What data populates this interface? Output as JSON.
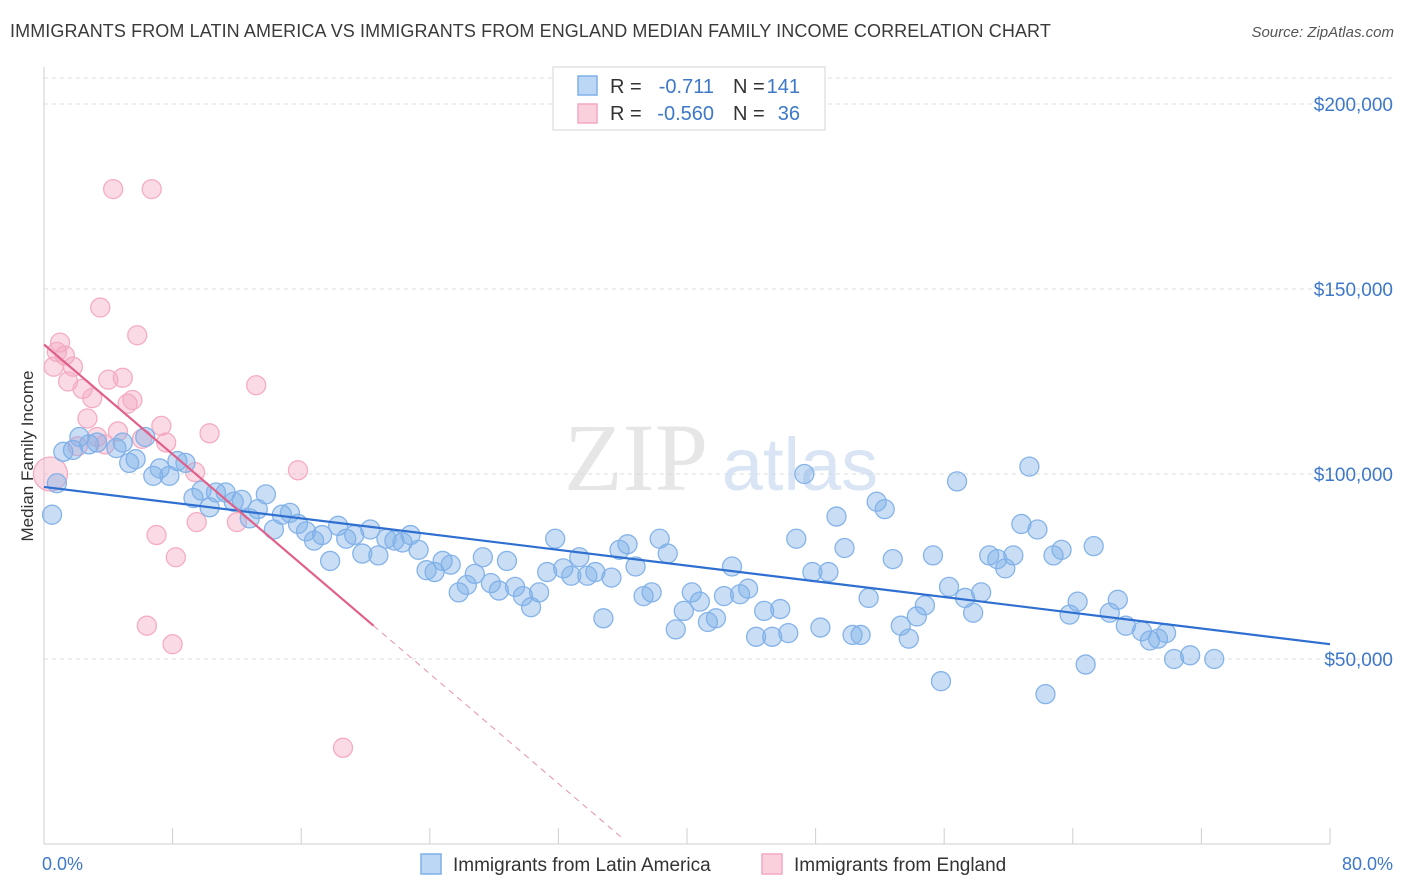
{
  "header": {
    "title": "IMMIGRANTS FROM LATIN AMERICA VS IMMIGRANTS FROM ENGLAND MEDIAN FAMILY INCOME CORRELATION CHART",
    "source": "Source: ZipAtlas.com"
  },
  "watermark": {
    "zip": "ZIP",
    "atlas": "atlas"
  },
  "legend": {
    "r_label": "R =",
    "n_label": "N =",
    "rows": [
      {
        "r": "-0.711",
        "n": "141"
      },
      {
        "r": "-0.560",
        "n": "36"
      }
    ]
  },
  "chart_data": {
    "type": "scatter",
    "title": "IMMIGRANTS FROM LATIN AMERICA VS IMMIGRANTS FROM ENGLAND MEDIAN FAMILY INCOME CORRELATION CHART",
    "xlabel": "",
    "ylabel": "Median Family Income",
    "xlim": [
      0,
      80
    ],
    "ylim": [
      0,
      210000
    ],
    "x_tick_labels": [
      "0.0%",
      "80.0%"
    ],
    "y_ticks": [
      50000,
      100000,
      150000,
      200000
    ],
    "y_tick_labels": [
      "$50,000",
      "$100,000",
      "$150,000",
      "$200,000"
    ],
    "grid": true,
    "legend_position": "top-center",
    "colors": {
      "latin": "#7fb0e8",
      "latin_line": "#2f6fd0",
      "england": "#f4a9c0",
      "england_line": "#e0608a"
    },
    "series": [
      {
        "name": "Immigrants from Latin America",
        "trend": {
          "x0": 0,
          "y0": 96500,
          "x1": 80,
          "y1": 54000
        },
        "points": [
          [
            0.5,
            89000
          ],
          [
            0.8,
            97500
          ],
          [
            1.2,
            106000
          ],
          [
            1.8,
            106500
          ],
          [
            2.2,
            110000
          ],
          [
            2.8,
            108000
          ],
          [
            3.3,
            108500
          ],
          [
            4.5,
            107000
          ],
          [
            4.9,
            108500
          ],
          [
            5.3,
            103000
          ],
          [
            5.7,
            104000
          ],
          [
            6.3,
            110000
          ],
          [
            6.8,
            99500
          ],
          [
            7.2,
            101500
          ],
          [
            7.8,
            99500
          ],
          [
            8.3,
            103500
          ],
          [
            8.8,
            103000
          ],
          [
            9.3,
            93500
          ],
          [
            9.8,
            95500
          ],
          [
            10.3,
            91000
          ],
          [
            10.7,
            95000
          ],
          [
            11.3,
            95000
          ],
          [
            11.8,
            92500
          ],
          [
            12.3,
            93000
          ],
          [
            12.8,
            88000
          ],
          [
            13.3,
            90500
          ],
          [
            13.8,
            94500
          ],
          [
            14.3,
            85000
          ],
          [
            14.8,
            89000
          ],
          [
            15.3,
            89500
          ],
          [
            15.8,
            86500
          ],
          [
            16.3,
            84500
          ],
          [
            16.8,
            82000
          ],
          [
            17.3,
            83500
          ],
          [
            17.8,
            76500
          ],
          [
            18.3,
            86000
          ],
          [
            18.8,
            82500
          ],
          [
            19.3,
            83500
          ],
          [
            19.8,
            78500
          ],
          [
            20.3,
            85000
          ],
          [
            20.8,
            78000
          ],
          [
            21.3,
            82500
          ],
          [
            21.8,
            82000
          ],
          [
            22.3,
            81500
          ],
          [
            22.8,
            83500
          ],
          [
            23.3,
            79500
          ],
          [
            23.8,
            74000
          ],
          [
            24.3,
            73500
          ],
          [
            24.8,
            76500
          ],
          [
            25.3,
            75500
          ],
          [
            25.8,
            68000
          ],
          [
            26.3,
            70000
          ],
          [
            26.8,
            73000
          ],
          [
            27.3,
            77500
          ],
          [
            27.8,
            70500
          ],
          [
            28.3,
            68500
          ],
          [
            28.8,
            76500
          ],
          [
            29.3,
            69500
          ],
          [
            29.8,
            67000
          ],
          [
            30.3,
            64000
          ],
          [
            30.8,
            68000
          ],
          [
            31.3,
            73500
          ],
          [
            31.8,
            82500
          ],
          [
            32.3,
            74500
          ],
          [
            32.8,
            72500
          ],
          [
            33.3,
            77500
          ],
          [
            33.8,
            72500
          ],
          [
            34.3,
            73500
          ],
          [
            34.8,
            61000
          ],
          [
            35.3,
            72000
          ],
          [
            35.8,
            79500
          ],
          [
            36.3,
            81000
          ],
          [
            36.8,
            75000
          ],
          [
            37.3,
            67000
          ],
          [
            37.8,
            68000
          ],
          [
            38.3,
            82500
          ],
          [
            38.8,
            78500
          ],
          [
            39.3,
            58000
          ],
          [
            39.8,
            63000
          ],
          [
            40.3,
            68000
          ],
          [
            40.8,
            65500
          ],
          [
            41.3,
            60000
          ],
          [
            41.8,
            61000
          ],
          [
            42.3,
            67000
          ],
          [
            42.8,
            75000
          ],
          [
            43.3,
            67500
          ],
          [
            43.8,
            69000
          ],
          [
            44.3,
            56000
          ],
          [
            44.8,
            63000
          ],
          [
            45.3,
            56000
          ],
          [
            45.8,
            63500
          ],
          [
            46.3,
            57000
          ],
          [
            46.8,
            82500
          ],
          [
            47.3,
            100000
          ],
          [
            47.8,
            73500
          ],
          [
            48.3,
            58500
          ],
          [
            48.8,
            73500
          ],
          [
            49.3,
            88500
          ],
          [
            49.8,
            80000
          ],
          [
            50.3,
            56500
          ],
          [
            50.8,
            56500
          ],
          [
            51.3,
            66500
          ],
          [
            51.8,
            92500
          ],
          [
            52.3,
            90500
          ],
          [
            52.8,
            77000
          ],
          [
            53.3,
            59000
          ],
          [
            53.8,
            55500
          ],
          [
            54.3,
            61500
          ],
          [
            54.8,
            64500
          ],
          [
            55.3,
            78000
          ],
          [
            55.8,
            44000
          ],
          [
            56.3,
            69500
          ],
          [
            56.8,
            98000
          ],
          [
            57.3,
            66500
          ],
          [
            57.8,
            62500
          ],
          [
            58.3,
            68000
          ],
          [
            58.8,
            78000
          ],
          [
            59.3,
            77000
          ],
          [
            59.8,
            74500
          ],
          [
            60.3,
            78000
          ],
          [
            60.8,
            86500
          ],
          [
            61.3,
            102000
          ],
          [
            61.8,
            85000
          ],
          [
            62.3,
            40500
          ],
          [
            62.8,
            78000
          ],
          [
            63.3,
            79500
          ],
          [
            63.8,
            62000
          ],
          [
            64.3,
            65500
          ],
          [
            64.8,
            48500
          ],
          [
            65.3,
            80500
          ],
          [
            66.3,
            62500
          ],
          [
            66.8,
            66000
          ],
          [
            67.3,
            59000
          ],
          [
            68.3,
            57500
          ],
          [
            68.8,
            55000
          ],
          [
            69.3,
            55500
          ],
          [
            69.8,
            57000
          ],
          [
            70.3,
            50000
          ],
          [
            71.3,
            51000
          ],
          [
            72.8,
            50000
          ]
        ]
      },
      {
        "name": "Immigrants from England",
        "trend": {
          "x0": 0,
          "y0": 135000,
          "x1": 20.5,
          "y1": 59000,
          "dash_x1": 36,
          "dash_y1": 1500
        },
        "points": [
          [
            0.4,
            100000
          ],
          [
            0.6,
            129000
          ],
          [
            0.8,
            133000
          ],
          [
            1.0,
            135500
          ],
          [
            1.3,
            132000
          ],
          [
            1.5,
            125000
          ],
          [
            1.8,
            129000
          ],
          [
            2.1,
            107500
          ],
          [
            2.4,
            123000
          ],
          [
            2.7,
            115000
          ],
          [
            3.0,
            120500
          ],
          [
            3.3,
            110000
          ],
          [
            3.5,
            145000
          ],
          [
            3.8,
            108000
          ],
          [
            4.0,
            125500
          ],
          [
            4.3,
            177000
          ],
          [
            4.6,
            111500
          ],
          [
            4.9,
            126000
          ],
          [
            5.2,
            119000
          ],
          [
            5.5,
            120000
          ],
          [
            5.8,
            137500
          ],
          [
            6.1,
            109500
          ],
          [
            6.4,
            59000
          ],
          [
            6.7,
            177000
          ],
          [
            7.0,
            83500
          ],
          [
            7.3,
            113000
          ],
          [
            7.6,
            108500
          ],
          [
            8.0,
            54000
          ],
          [
            8.2,
            77500
          ],
          [
            9.4,
            100500
          ],
          [
            9.5,
            87000
          ],
          [
            10.3,
            111000
          ],
          [
            12.0,
            87000
          ],
          [
            13.2,
            124000
          ],
          [
            15.8,
            101000
          ],
          [
            18.6,
            26000
          ]
        ]
      }
    ]
  }
}
